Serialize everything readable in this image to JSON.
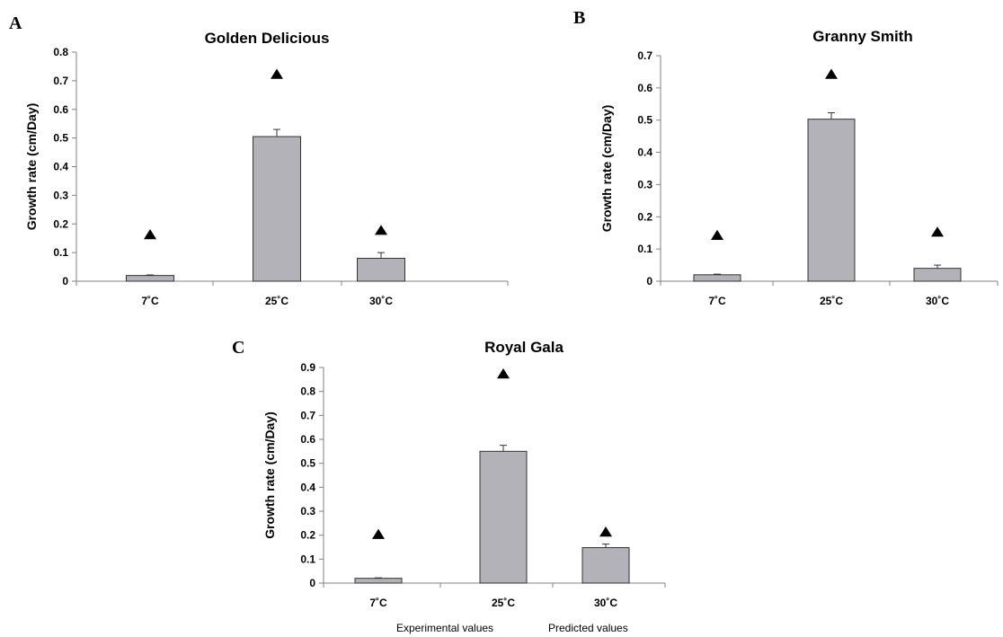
{
  "chart_data": [
    {
      "panel": "A",
      "type": "bar",
      "title": "Golden Delicious",
      "ylabel": "Growth rate (cm/Day)",
      "xlabel": "",
      "categories": [
        "7˚C",
        "25˚C",
        "30˚C"
      ],
      "ylim": [
        0,
        0.8
      ],
      "yticks": [
        "0",
        "0.1",
        "0.2",
        "0.3",
        "0.4",
        "0.5",
        "0.6",
        "0.7",
        "0.8"
      ],
      "series": [
        {
          "name": "Experimental values",
          "values": [
            0.02,
            0.505,
            0.08
          ],
          "errors": [
            0.002,
            0.025,
            0.02
          ]
        },
        {
          "name": "Predicted values",
          "values": [
            0.16,
            0.72,
            0.175
          ]
        }
      ]
    },
    {
      "panel": "B",
      "type": "bar",
      "title": "Granny Smith",
      "ylabel": "Growth rate (cm/Day)",
      "xlabel": "",
      "categories": [
        "7˚C",
        "25˚C",
        "30˚C"
      ],
      "ylim": [
        0,
        0.7
      ],
      "yticks": [
        "0",
        "0.1",
        "0.2",
        "0.3",
        "0.4",
        "0.5",
        "0.6",
        "0.7"
      ],
      "series": [
        {
          "name": "Experimental values",
          "values": [
            0.02,
            0.503,
            0.04
          ],
          "errors": [
            0.002,
            0.02,
            0.01
          ]
        },
        {
          "name": "Predicted values",
          "values": [
            0.14,
            0.64,
            0.15
          ]
        }
      ]
    },
    {
      "panel": "C",
      "type": "bar",
      "title": "Royal Gala",
      "ylabel": "Growth rate (cm/Day)",
      "xlabel": "",
      "categories": [
        "7˚C",
        "25˚C",
        "30˚C"
      ],
      "ylim": [
        0,
        0.9
      ],
      "yticks": [
        "0",
        "0.1",
        "0.2",
        "0.3",
        "0.4",
        "0.5",
        "0.6",
        "0.7",
        "0.8",
        "0.9"
      ],
      "series": [
        {
          "name": "Experimental values",
          "values": [
            0.02,
            0.55,
            0.148
          ],
          "errors": [
            0.002,
            0.025,
            0.015
          ]
        },
        {
          "name": "Predicted values",
          "values": [
            0.2,
            0.87,
            0.21
          ]
        }
      ]
    }
  ],
  "legend": {
    "items": [
      "Experimental values",
      "Predicted values"
    ],
    "placement": "bottom"
  },
  "colors": {
    "bar_fill": "#b2b2b8",
    "bar_stroke": "#333333",
    "axis": "#808080",
    "marker": "#000000"
  }
}
